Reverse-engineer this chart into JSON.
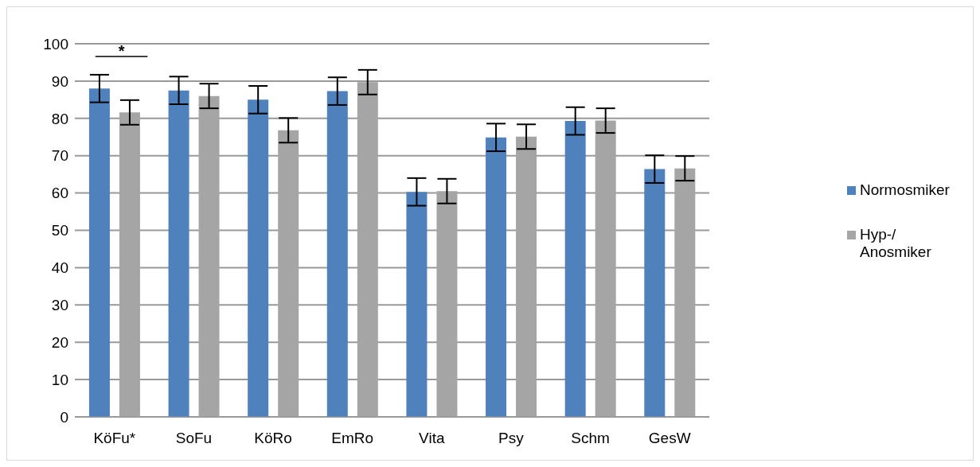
{
  "chart_data": {
    "type": "bar",
    "categories": [
      "KöFu*",
      "SoFu",
      "KöRo",
      "EmRo",
      "Vita",
      "Psy",
      "Schm",
      "GesW"
    ],
    "series": [
      {
        "name": "Normosmiker",
        "color": "#4f81bd",
        "values": [
          88,
          87.5,
          85,
          87.3,
          60.3,
          74.9,
          79.3,
          66.4
        ],
        "errors": [
          3.7,
          3.7,
          3.7,
          3.7,
          3.7,
          3.7,
          3.7,
          3.7
        ]
      },
      {
        "name": "Hyp-/ Anosmiker",
        "color": "#a5a5a5",
        "values": [
          81.6,
          86,
          76.8,
          89.7,
          60.5,
          75.1,
          79.4,
          66.6
        ],
        "errors": [
          3.3,
          3.3,
          3.3,
          3.3,
          3.3,
          3.3,
          3.3,
          3.3
        ]
      }
    ],
    "ylim": [
      0,
      100
    ],
    "yticks": [
      0,
      10,
      20,
      30,
      40,
      50,
      60,
      70,
      80,
      90,
      100
    ],
    "grid": "y",
    "legend": "right",
    "annotations": [
      "*"
    ]
  }
}
